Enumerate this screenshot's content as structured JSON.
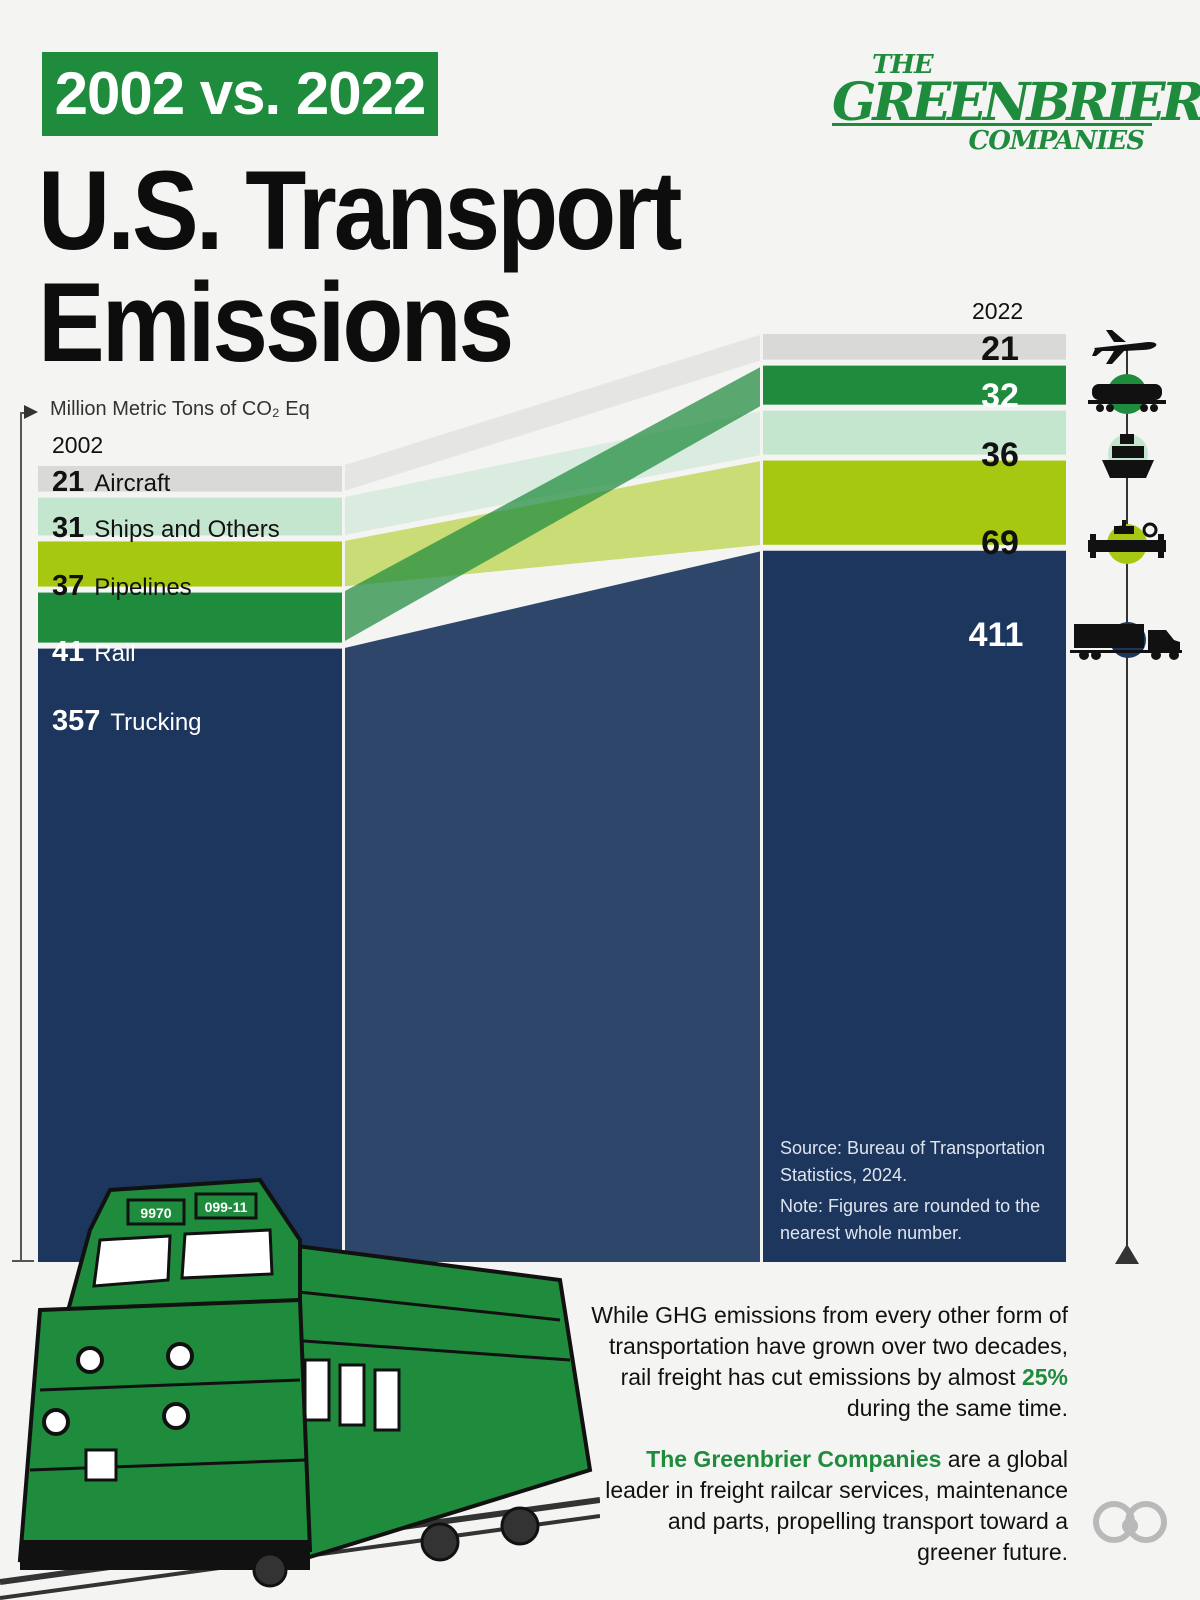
{
  "header": {
    "badge": "2002 vs. 2022",
    "title_line1": "U.S. Transport",
    "title_line2": "Emissions"
  },
  "logo": {
    "line1": "THE",
    "line2": "GREENBRIER",
    "line3": "COMPANIES"
  },
  "colors": {
    "aircraft": "#d9d9d7",
    "ships": "#c4e6cf",
    "pipelines": "#a6c810",
    "rail": "#1f8b3d",
    "trucking": "#1c365e",
    "brand_green": "#1f8b3d"
  },
  "chart_data": {
    "type": "bar",
    "unit_label": "Million Metric Tons of CO₂ Eq",
    "years": [
      "2002",
      "2022"
    ],
    "series": [
      {
        "name": "Aircraft",
        "values": [
          21,
          21
        ]
      },
      {
        "name": "Ships and Others",
        "values": [
          31,
          36
        ]
      },
      {
        "name": "Pipelines",
        "values": [
          37,
          69
        ]
      },
      {
        "name": "Rail",
        "values": [
          41,
          32
        ]
      },
      {
        "name": "Trucking",
        "values": [
          357,
          411
        ]
      }
    ]
  },
  "labels_2002": {
    "aircraft": {
      "value": "21",
      "name": "Aircraft"
    },
    "ships": {
      "value": "31",
      "name": "Ships and Others"
    },
    "pipelines": {
      "value": "37",
      "name": "Pipelines"
    },
    "rail": {
      "value": "41",
      "name": "Rail"
    },
    "trucking": {
      "value": "357",
      "name": "Trucking"
    }
  },
  "labels_2022": {
    "aircraft": "21",
    "rail": "32",
    "ships": "36",
    "pipelines": "69",
    "trucking": "411"
  },
  "icons": [
    "airplane-icon",
    "railcar-icon",
    "ship-icon",
    "pipeline-icon",
    "truck-icon"
  ],
  "source": {
    "line1": "Source: Bureau of Transportation Statistics, 2024.",
    "line2": "Note: Figures are rounded to the nearest whole number."
  },
  "description": {
    "p1_a": "While GHG emissions from every other form of transportation have grown over two decades, rail freight has cut emissions by almost ",
    "p1_hl": "25%",
    "p1_b": " during the same time.",
    "p2_hl": "The Greenbrier Companies",
    "p2_b": " are a global leader in freight railcar services, maintenance and parts, propelling transport toward a greener future."
  },
  "locomotive": {
    "number_left": "9970",
    "number_right": "099-11"
  }
}
